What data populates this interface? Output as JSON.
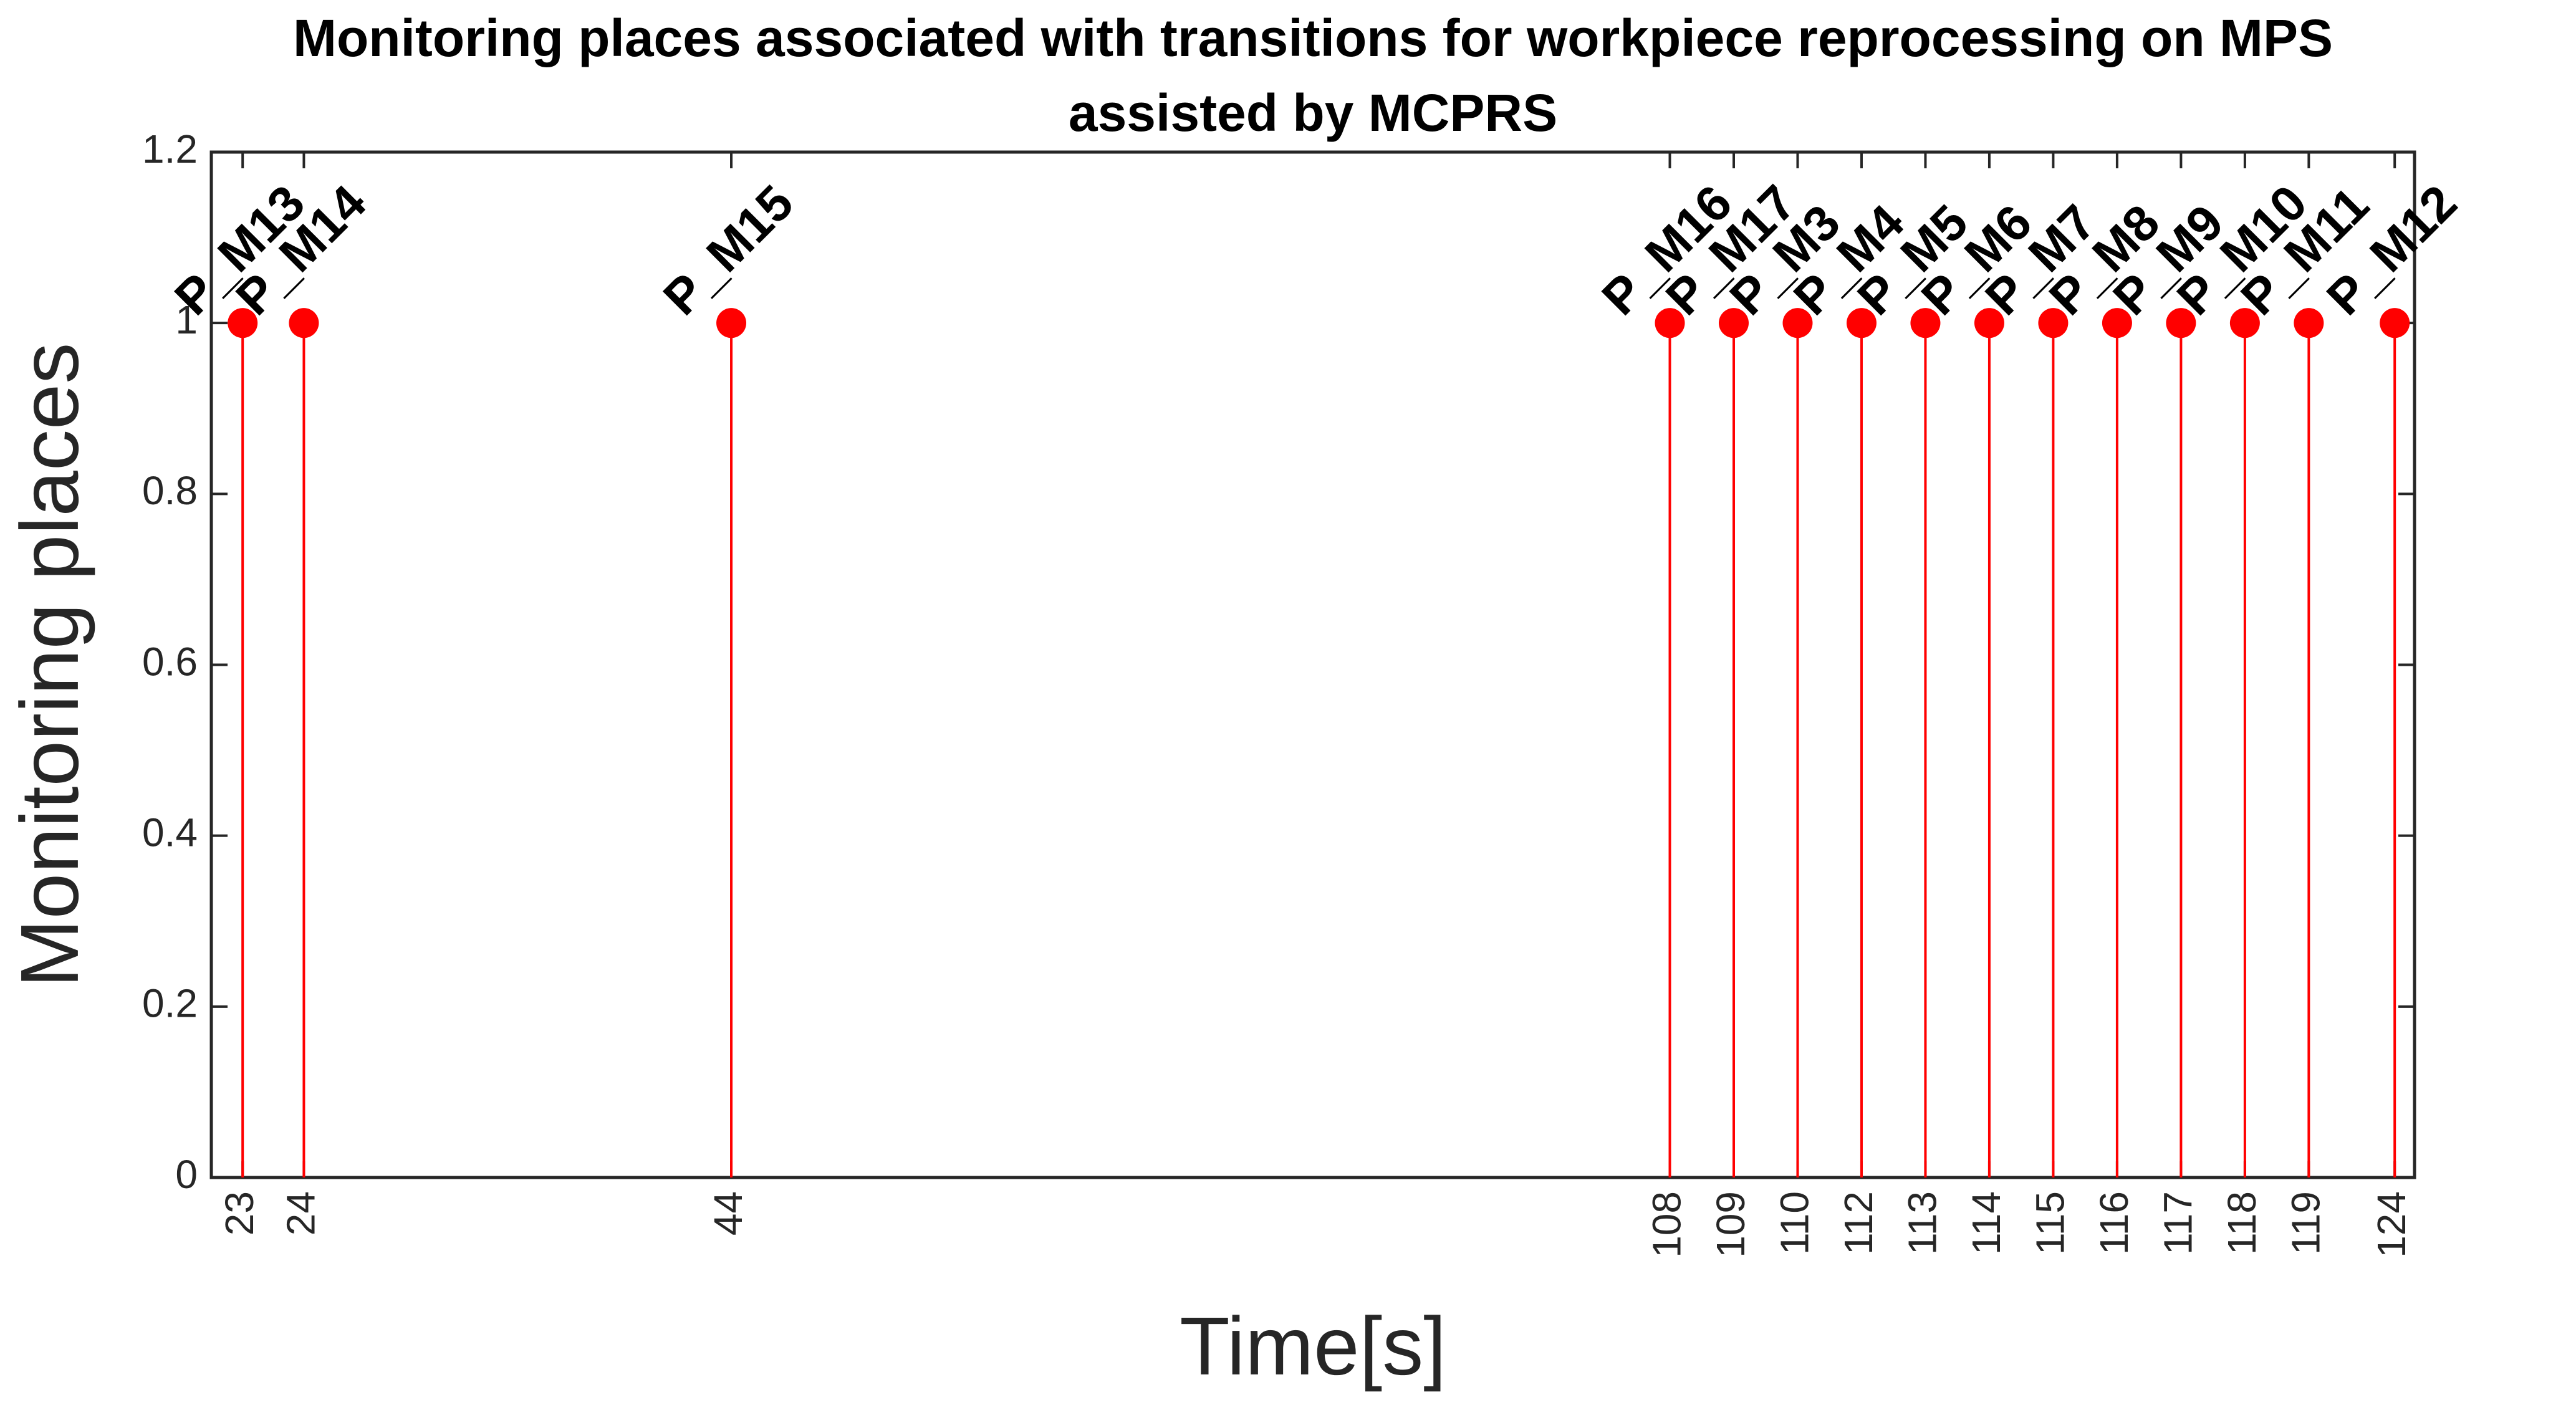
{
  "chart_data": {
    "type": "stem",
    "title": [
      "Monitoring places associated with transitions for workpiece reprocessing on MPS",
      "assisted by MCPRS"
    ],
    "xlabel": "Time[s]",
    "ylabel": "Monitoring places",
    "categories": [
      "23",
      "24",
      "44",
      "108",
      "109",
      "110",
      "112",
      "113",
      "114",
      "115",
      "116",
      "117",
      "118",
      "119",
      "124"
    ],
    "values": [
      1,
      1,
      1,
      1,
      1,
      1,
      1,
      1,
      1,
      1,
      1,
      1,
      1,
      1,
      1
    ],
    "point_labels": [
      "P_M13",
      "P_M14",
      "P_M15",
      "P_M16",
      "P_M17",
      "P_M3",
      "P_M4",
      "P_M5",
      "P_M6",
      "P_M7",
      "P_M8",
      "P_M9",
      "P_M10",
      "P_M11",
      "P_M12"
    ],
    "color": "#ff0000",
    "ylim": [
      0,
      1.2
    ],
    "yticks": [
      0,
      0.2,
      0.4,
      0.6,
      0.8,
      1,
      1.2
    ],
    "grid": false
  }
}
